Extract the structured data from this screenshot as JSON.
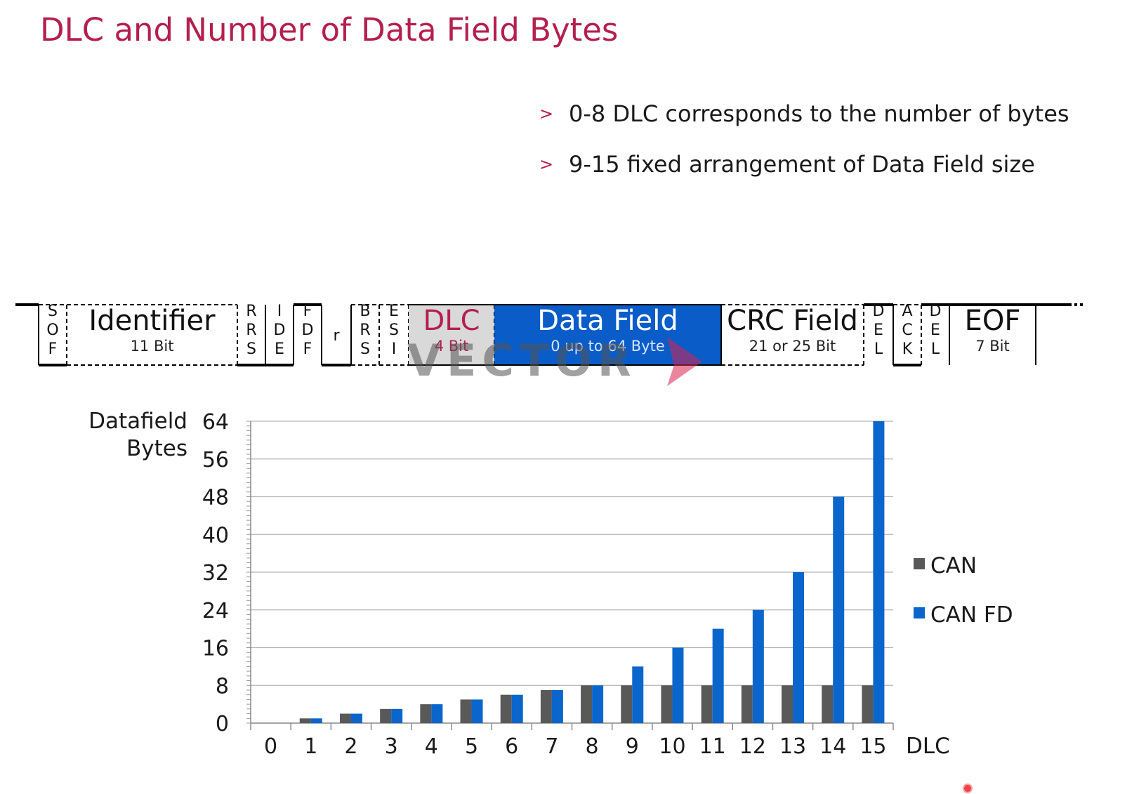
{
  "title": "DLC and Number of Data Field Bytes",
  "bullets": [
    "0-8 DLC corresponds to the number of bytes",
    "9-15 fixed arrangement of Data Field size"
  ],
  "frame": {
    "fields": [
      {
        "id": "sof",
        "label": "S\nO\nF"
      },
      {
        "id": "identifier",
        "label": "Identifier",
        "sub": "11 Bit"
      },
      {
        "id": "rrs",
        "label": "R\nR\nS"
      },
      {
        "id": "ide",
        "label": "I\nD\nE"
      },
      {
        "id": "fdf",
        "label": "F\nD\nF"
      },
      {
        "id": "r",
        "label": "r"
      },
      {
        "id": "brs",
        "label": "B\nR\nS"
      },
      {
        "id": "esi",
        "label": "E\nS\nI"
      },
      {
        "id": "dlc",
        "label": "DLC",
        "sub": "4 Bit"
      },
      {
        "id": "data-field",
        "label": "Data Field",
        "sub": "0 up to 64 Byte"
      },
      {
        "id": "crc-field",
        "label": "CRC Field",
        "sub": "21 or 25 Bit"
      },
      {
        "id": "crc-del",
        "label": "D\nE\nL"
      },
      {
        "id": "ack",
        "label": "A\nC\nK"
      },
      {
        "id": "ack-del",
        "label": "D\nE\nL"
      },
      {
        "id": "eof",
        "label": "EOF",
        "sub": "7 Bit"
      }
    ],
    "colors": {
      "dlc_bg": "#d9d9d9",
      "dlc_text": "#b41f4e",
      "data_bg": "#0a5cc8"
    },
    "watermark": "VECTOR"
  },
  "chart_data": {
    "type": "bar",
    "categories": [
      "0",
      "1",
      "2",
      "3",
      "4",
      "5",
      "6",
      "7",
      "8",
      "9",
      "10",
      "11",
      "12",
      "13",
      "14",
      "15"
    ],
    "series": [
      {
        "name": "CAN",
        "color": "#595959",
        "values": [
          0,
          1,
          2,
          3,
          4,
          5,
          6,
          7,
          8,
          8,
          8,
          8,
          8,
          8,
          8,
          8
        ]
      },
      {
        "name": "CAN FD",
        "color": "#0a66cc",
        "values": [
          0,
          1,
          2,
          3,
          4,
          5,
          6,
          7,
          8,
          12,
          16,
          20,
          24,
          32,
          48,
          64
        ]
      }
    ],
    "yticks": [
      0,
      8,
      16,
      24,
      32,
      40,
      48,
      56,
      64
    ],
    "ylim": [
      0,
      64
    ],
    "ylabel": "Datafield\nBytes",
    "xlabel": "DLC",
    "grid": true,
    "legend": "right"
  }
}
